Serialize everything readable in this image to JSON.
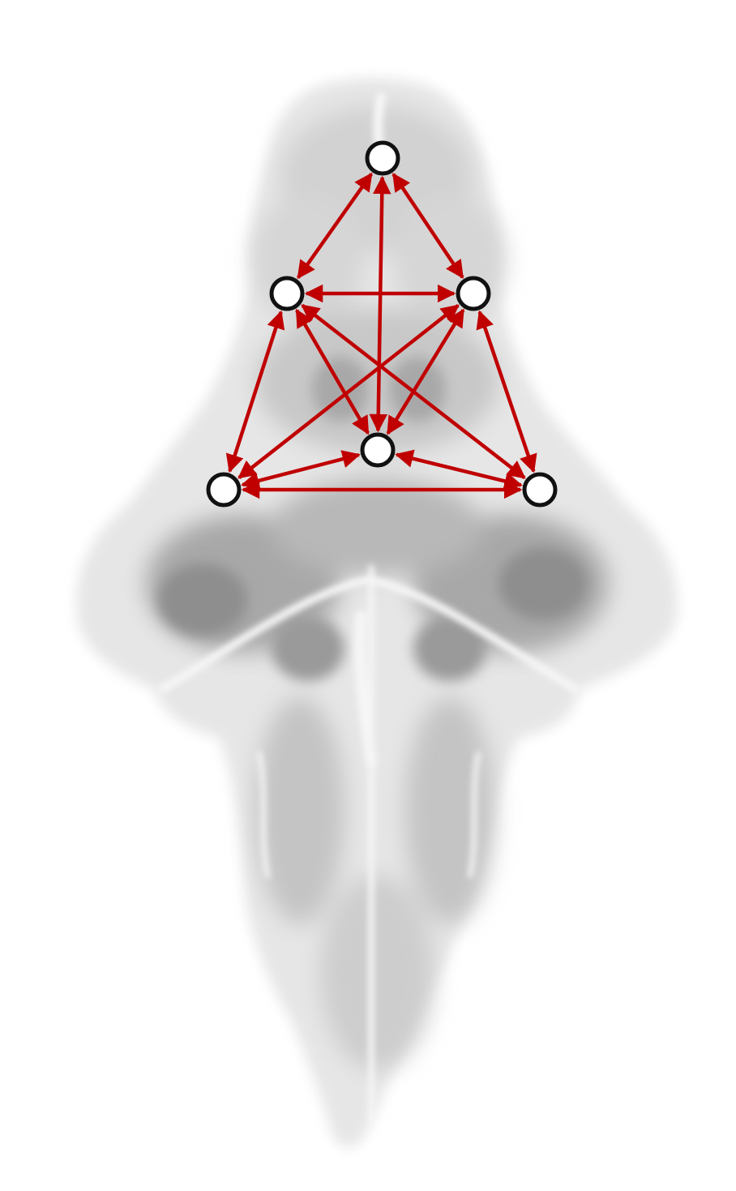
{
  "figure": {
    "kind": "connectivity diagram over brain silhouette",
    "background": "#ffffff",
    "edge_color": "#c00000",
    "node_stroke": "#111111",
    "node_fill": "#ffffff",
    "tissue_colors": {
      "light": "#e6e6e6",
      "mid": "#c4c4c4",
      "dark": "#8e8e8e",
      "highlight": "#f6f6f6"
    }
  },
  "nodes": [
    {
      "id": "top"
    },
    {
      "id": "mid-left"
    },
    {
      "id": "mid-right"
    },
    {
      "id": "center"
    },
    {
      "id": "bottom-left"
    },
    {
      "id": "bottom-right"
    }
  ],
  "edges": [
    {
      "from": "top",
      "to": "mid-left",
      "bidirectional": true
    },
    {
      "from": "top",
      "to": "mid-right",
      "bidirectional": true
    },
    {
      "from": "top",
      "to": "center",
      "bidirectional": true
    },
    {
      "from": "mid-left",
      "to": "mid-right",
      "bidirectional": true
    },
    {
      "from": "mid-left",
      "to": "center",
      "bidirectional": true
    },
    {
      "from": "mid-left",
      "to": "bottom-left",
      "bidirectional": true
    },
    {
      "from": "mid-left",
      "to": "bottom-right",
      "bidirectional": true
    },
    {
      "from": "mid-right",
      "to": "center",
      "bidirectional": true
    },
    {
      "from": "mid-right",
      "to": "bottom-left",
      "bidirectional": true
    },
    {
      "from": "mid-right",
      "to": "bottom-right",
      "bidirectional": true
    },
    {
      "from": "center",
      "to": "bottom-left",
      "bidirectional": true
    },
    {
      "from": "center",
      "to": "bottom-right",
      "bidirectional": true
    },
    {
      "from": "bottom-left",
      "to": "bottom-right",
      "bidirectional": true
    }
  ]
}
